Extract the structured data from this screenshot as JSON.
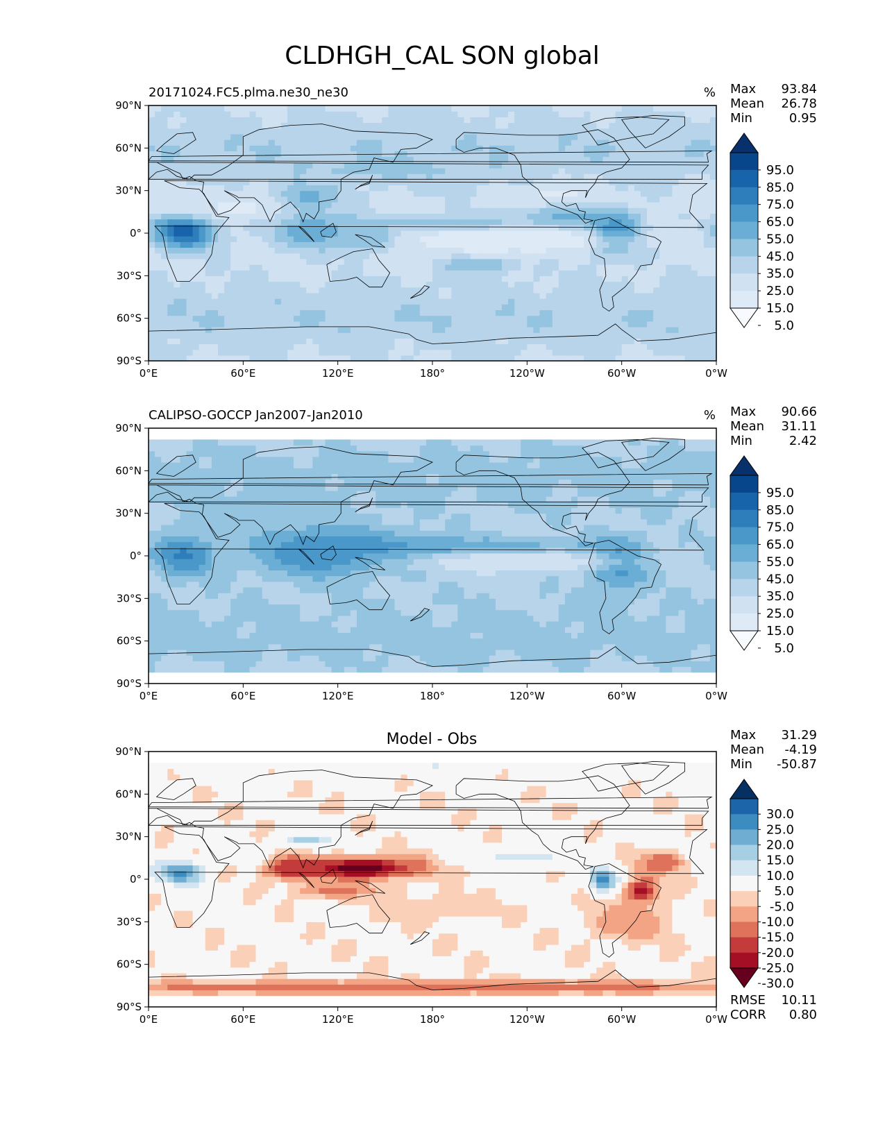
{
  "figure_title": "CLDHGH_CAL SON global",
  "stat_labels": {
    "max": "Max",
    "mean": "Mean",
    "min": "Min",
    "rmse": "RMSE",
    "corr": "CORR"
  },
  "colors": {
    "seq": [
      "#f7fbff",
      "#deebf7",
      "#d0e1f2",
      "#b7d4ea",
      "#94c4df",
      "#6aaed6",
      "#4a98c9",
      "#2e7ebc",
      "#1764ab",
      "#08468b",
      "#08306b"
    ],
    "div": [
      "#67001f",
      "#a50f26",
      "#c43b3c",
      "#de725b",
      "#f3a484",
      "#fbd0b9",
      "#f7f7f7",
      "#d3e5f0",
      "#a6cfe4",
      "#6fadd2",
      "#3c8cc0",
      "#1c65a8",
      "#053061"
    ],
    "land_line": "#000000"
  },
  "chart_data": [
    {
      "type": "heatmap",
      "title": "20171024.FC5.plma.ne30_ne30",
      "units": "%",
      "stats": {
        "max": "93.84",
        "mean": "26.78",
        "min": "0.95"
      },
      "colorbar": {
        "ticks": [
          "95.0",
          "85.0",
          "75.0",
          "65.0",
          "55.0",
          "45.0",
          "35.0",
          "25.0",
          "15.0",
          "5.0"
        ],
        "levels": [
          0,
          5,
          15,
          25,
          35,
          45,
          55,
          65,
          75,
          85,
          95,
          100
        ],
        "extend": "both",
        "scheme": "seq"
      },
      "xlim": [
        0,
        360
      ],
      "ylim": [
        -90,
        90
      ],
      "xticks": [
        "0°E",
        "60°E",
        "120°E",
        "180°",
        "120°W",
        "60°W",
        "0°W"
      ],
      "yticks": [
        "90°N",
        "60°N",
        "30°N",
        "0°",
        "30°S",
        "60°S",
        "90°S"
      ],
      "lat_range": [
        -90,
        90
      ],
      "features": [
        {
          "lon": 22,
          "lat": 2,
          "dlon": 14,
          "dlat": 9,
          "value": 85
        },
        {
          "lon": 105,
          "lat": 2,
          "dlon": 18,
          "dlat": 9,
          "value": 58
        },
        {
          "lon": 140,
          "lat": -4,
          "dlon": 14,
          "dlat": 6,
          "value": 58
        },
        {
          "lon": 295,
          "lat": 0,
          "dlon": 12,
          "dlat": 10,
          "value": 80
        },
        {
          "lon": 265,
          "lat": 12,
          "dlon": 20,
          "dlat": 6,
          "value": 50
        },
        {
          "lon": 190,
          "lat": 8,
          "dlon": 45,
          "dlat": 4,
          "value": 42
        },
        {
          "lon": 210,
          "lat": -22,
          "dlon": 15,
          "dlat": 4,
          "value": 48
        },
        {
          "lon": 100,
          "lat": 25,
          "dlon": 14,
          "dlat": 7,
          "value": 50
        },
        {
          "lon": 150,
          "lat": 45,
          "dlon": 40,
          "dlat": 6,
          "value": 38
        },
        {
          "lon": 230,
          "lat": -5,
          "dlon": 55,
          "dlat": 6,
          "value": 5
        },
        {
          "lon": 55,
          "lat": 18,
          "dlon": 22,
          "dlat": 6,
          "value": 12
        },
        {
          "lon": 10,
          "lat": 25,
          "dlon": 20,
          "dlat": 8,
          "value": 15
        },
        {
          "lon": 260,
          "lat": 28,
          "dlon": 18,
          "dlat": 6,
          "value": 12
        }
      ],
      "baseline": {
        "tropics": 22,
        "midlat": 34,
        "polar": 24
      }
    },
    {
      "type": "heatmap",
      "title": "CALIPSO-GOCCP Jan2007-Jan2010",
      "units": "%",
      "stats": {
        "max": "90.66",
        "mean": "31.11",
        "min": "2.42"
      },
      "colorbar": {
        "ticks": [
          "95.0",
          "85.0",
          "75.0",
          "65.0",
          "55.0",
          "45.0",
          "35.0",
          "25.0",
          "15.0",
          "5.0"
        ],
        "levels": [
          0,
          5,
          15,
          25,
          35,
          45,
          55,
          65,
          75,
          85,
          95,
          100
        ],
        "extend": "both",
        "scheme": "seq"
      },
      "xlim": [
        0,
        360
      ],
      "ylim": [
        -90,
        90
      ],
      "xticks": [
        "0°E",
        "60°E",
        "120°E",
        "180°",
        "120°W",
        "60°W",
        "0°W"
      ],
      "yticks": [
        "90°N",
        "60°N",
        "30°N",
        "0°",
        "30°S",
        "60°S",
        "90°S"
      ],
      "lat_range": [
        -82,
        82
      ],
      "features": [
        {
          "lon": 22,
          "lat": 0,
          "dlon": 14,
          "dlat": 10,
          "value": 68
        },
        {
          "lon": 110,
          "lat": 3,
          "dlon": 30,
          "dlat": 12,
          "value": 70
        },
        {
          "lon": 150,
          "lat": 5,
          "dlon": 30,
          "dlat": 7,
          "value": 62
        },
        {
          "lon": 200,
          "lat": 7,
          "dlon": 55,
          "dlat": 4,
          "value": 55
        },
        {
          "lon": 298,
          "lat": -5,
          "dlon": 14,
          "dlat": 12,
          "value": 68
        },
        {
          "lon": 75,
          "lat": 28,
          "dlon": 30,
          "dlat": 8,
          "value": 45
        },
        {
          "lon": 235,
          "lat": -4,
          "dlon": 50,
          "dlat": 5,
          "value": 15
        }
      ],
      "baseline": {
        "tropics": 32,
        "midlat": 40,
        "polar": 30
      }
    },
    {
      "type": "heatmap",
      "title": "Model - Obs",
      "units": "",
      "stats": {
        "max": "31.29",
        "mean": "-4.19",
        "min": "-50.87",
        "rmse": "10.11",
        "corr": "0.80"
      },
      "colorbar": {
        "ticks": [
          "30.0",
          "25.0",
          "20.0",
          "15.0",
          "10.0",
          "5.0",
          "-5.0",
          "-10.0",
          "-15.0",
          "-20.0",
          "-25.0",
          "-30.0"
        ],
        "levels": [
          -35,
          -30,
          -25,
          -20,
          -15,
          -10,
          -5,
          5,
          10,
          15,
          20,
          25,
          30,
          35
        ],
        "extend": "both",
        "scheme": "div"
      },
      "xlim": [
        0,
        360
      ],
      "ylim": [
        -90,
        90
      ],
      "xticks": [
        "0°E",
        "60°E",
        "120°E",
        "180°",
        "120°W",
        "60°W",
        "0°W"
      ],
      "yticks": [
        "90°N",
        "60°N",
        "30°N",
        "0°",
        "30°S",
        "60°S",
        "90°S"
      ],
      "lat_range": [
        -82,
        82
      ],
      "features": [
        {
          "lon": 135,
          "lat": 8,
          "dlon": 28,
          "dlat": 6,
          "value": -34
        },
        {
          "lon": 90,
          "lat": 8,
          "dlon": 12,
          "dlat": 6,
          "value": -25
        },
        {
          "lon": 120,
          "lat": -8,
          "dlon": 20,
          "dlat": 4,
          "value": -20
        },
        {
          "lon": 313,
          "lat": -8,
          "dlon": 8,
          "dlat": 7,
          "value": -28
        },
        {
          "lon": 325,
          "lat": 12,
          "dlon": 12,
          "dlat": 6,
          "value": -20
        },
        {
          "lon": 305,
          "lat": -30,
          "dlon": 20,
          "dlat": 10,
          "value": -15
        },
        {
          "lon": 180,
          "lat": -76,
          "dlon": 200,
          "dlat": 4,
          "value": -20
        },
        {
          "lon": 20,
          "lat": 5,
          "dlon": 10,
          "dlat": 6,
          "value": 22
        },
        {
          "lon": 288,
          "lat": 0,
          "dlon": 6,
          "dlat": 6,
          "value": 22
        },
        {
          "lon": 100,
          "lat": 28,
          "dlon": 10,
          "dlat": 3,
          "value": 15
        },
        {
          "lon": 240,
          "lat": 15,
          "dlon": 20,
          "dlat": 4,
          "value": 8
        },
        {
          "lon": 180,
          "lat": -20,
          "dlon": 40,
          "dlat": 10,
          "value": -7
        }
      ],
      "baseline": {
        "tropics": -2,
        "midlat": -3,
        "polar": 2
      }
    }
  ]
}
